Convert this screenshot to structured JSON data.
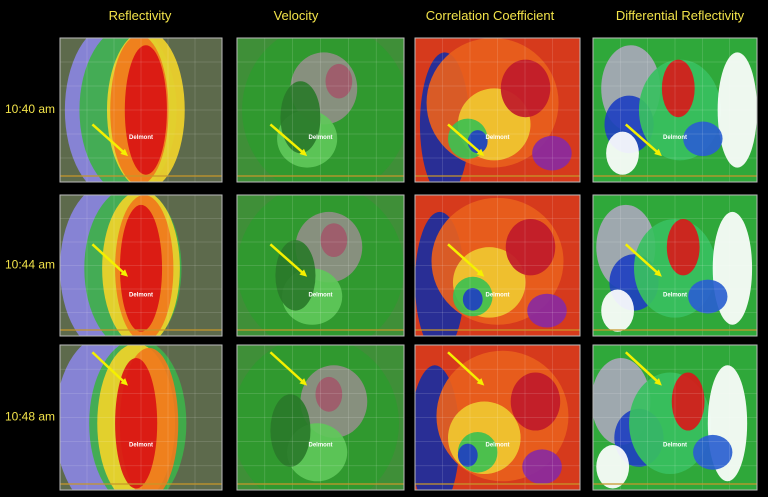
{
  "columns": [
    "Reflectivity",
    "Velocity",
    "Correlation Coefficient",
    "Differential Reflectivity"
  ],
  "rows": [
    "10:40 am",
    "10:44 am",
    "10:48 am"
  ],
  "place": "Delmont"
}
